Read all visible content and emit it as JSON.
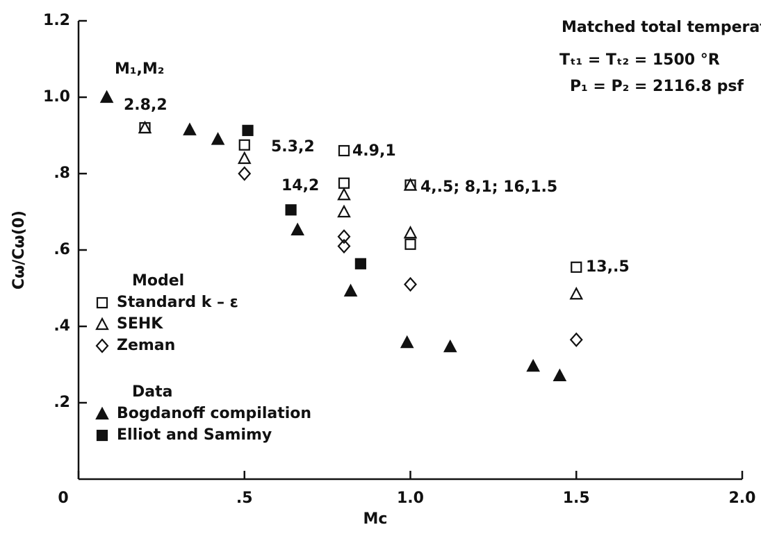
{
  "chart_data": {
    "type": "scatter",
    "xlabel": "Mc",
    "ylabel": "Cω/Cω(0)",
    "xlim": [
      0,
      2.0
    ],
    "ylim": [
      0,
      1.2
    ],
    "xticks": [
      0,
      {
        "value": 0.5,
        "label": ".5"
      },
      {
        "value": 1.0,
        "label": "1.0"
      },
      {
        "value": 1.5,
        "label": "1.5"
      },
      {
        "value": 2.0,
        "label": "2.0"
      }
    ],
    "yticks": [
      {
        "value": 0.2,
        "label": ".2"
      },
      {
        "value": 0.4,
        "label": ".4"
      },
      {
        "value": 0.6,
        "label": ".6"
      },
      {
        "value": 0.8,
        "label": ".8"
      },
      {
        "value": 1.0,
        "label": "1.0"
      },
      {
        "value": 1.2,
        "label": "1.2"
      }
    ],
    "grid": false,
    "legend_groups": [
      "Model",
      "Data"
    ],
    "series": [
      {
        "name": "Standard k – ε",
        "color": "#111",
        "marker": "square-open",
        "group": 0,
        "x": [
          0.2,
          0.5,
          0.8,
          0.8,
          1.0,
          1.0,
          1.5
        ],
        "values": [
          0.92,
          0.875,
          0.86,
          0.775,
          0.77,
          0.615,
          0.555
        ]
      },
      {
        "name": "SEHK",
        "color": "#111",
        "marker": "triangle-open",
        "group": 0,
        "x": [
          0.2,
          0.5,
          0.8,
          0.8,
          1.0,
          1.0,
          1.5
        ],
        "values": [
          0.92,
          0.84,
          0.745,
          0.7,
          0.77,
          0.645,
          0.485
        ]
      },
      {
        "name": "Zeman",
        "color": "#111",
        "marker": "diamond-open",
        "group": 0,
        "x": [
          0.5,
          0.8,
          0.8,
          1.0,
          1.5
        ],
        "values": [
          0.8,
          0.635,
          0.61,
          0.51,
          0.365
        ]
      },
      {
        "name": "Bogdanoff compilation",
        "color": "#111",
        "marker": "triangle-filled",
        "group": 1,
        "x": [
          0.085,
          0.335,
          0.42,
          0.66,
          0.82,
          0.99,
          1.12,
          1.37,
          1.45
        ],
        "values": [
          1.0,
          0.915,
          0.89,
          0.653,
          0.493,
          0.358,
          0.347,
          0.296,
          0.271
        ]
      },
      {
        "name": "Elliot and Samimy",
        "color": "#111",
        "marker": "square-filled",
        "group": 1,
        "x": [
          0.51,
          0.64,
          0.85
        ],
        "values": [
          0.913,
          0.705,
          0.564
        ]
      }
    ],
    "annotations": [
      "Matched total temperatures",
      "Tₜ₁ = Tₜ₂ = 1500 °R",
      "P₁ =  P₂ = 2116.8 psf",
      "M₁,M₂",
      "2.8,2",
      "5.3,2",
      "4.9,1",
      "14,2",
      "4,.5; 8,1; 16,1.5",
      "13,.5"
    ]
  }
}
